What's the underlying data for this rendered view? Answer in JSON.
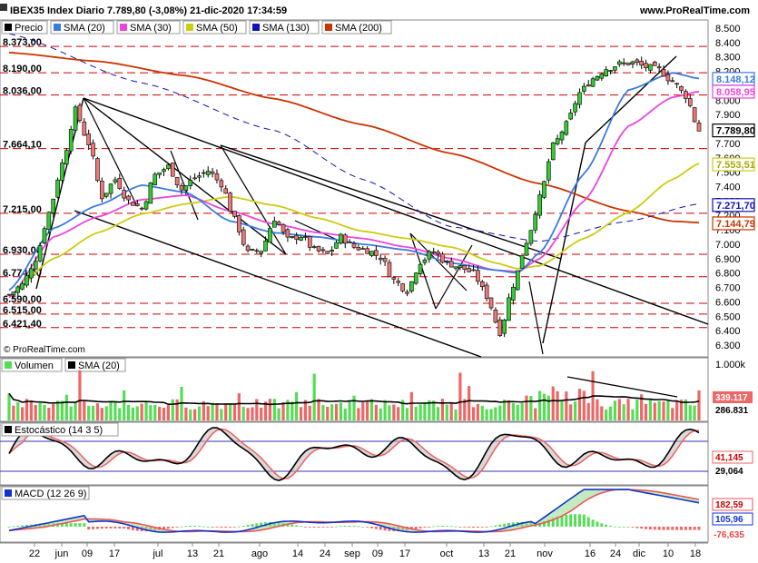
{
  "header": {
    "title": "IBEX35 Index Diario 7.789,80 (-3,08%) 21-dic-2020 17:34:59",
    "website": "www.ProRealTime.com",
    "watermark": "© ProRealTime.com"
  },
  "colors": {
    "price": "#000000",
    "sma20": "#3a7be0",
    "sma30": "#ee44dd",
    "sma50": "#cccc11",
    "sma130": "#1111bb",
    "sma200": "#cc3300",
    "up": "#33cc33",
    "down": "#ee7777",
    "level_line": "#cc0000",
    "volume_up": "#55dd55",
    "volume_down": "#ee6666"
  },
  "chart_data": [
    {
      "type": "line",
      "panel": "price",
      "legend": [
        "Precio",
        "SMA (20)",
        "SMA (30)",
        "SMA (50)",
        "SMA (130)",
        "SMA (200)"
      ],
      "ylim": [
        6300,
        8500
      ],
      "y_ticks": [
        "8.500",
        "8.400",
        "8.300",
        "8.200",
        "8.100",
        "8.000",
        "7.900",
        "7.800",
        "7.700",
        "7.600",
        "7.500",
        "7.400",
        "7.300",
        "7.200",
        "7.100",
        "7.000",
        "6.900",
        "6.800",
        "6.700",
        "6.600",
        "6.500",
        "6.400",
        "6.300"
      ],
      "x_ticks": [
        "22",
        "jun",
        "09",
        "17",
        "jul",
        "13",
        "21",
        "ago",
        "14",
        "24",
        "sep",
        "09",
        "17",
        "oct",
        "13",
        "21",
        "nov",
        "16",
        "24",
        "dic",
        "10",
        "18"
      ],
      "level_labels": [
        {
          "label": "8.373,00",
          "value": 8373
        },
        {
          "label": "8.190,00",
          "value": 8190
        },
        {
          "label": "8.036,00",
          "value": 8036
        },
        {
          "label": "7.664,10",
          "value": 7664
        },
        {
          "label": "7.215,00",
          "value": 7215
        },
        {
          "label": "6.930,00",
          "value": 6930
        },
        {
          "label": "6.774,00",
          "value": 6774
        },
        {
          "label": "6.590,00",
          "value": 6590
        },
        {
          "label": "6.515,00",
          "value": 6515
        },
        {
          "label": "6.421,40",
          "value": 6421
        }
      ],
      "value_badges": [
        {
          "label": "8.148,12",
          "value": 8148,
          "series": "sma20"
        },
        {
          "label": "8.058,95",
          "value": 8059,
          "series": "sma30"
        },
        {
          "label": "7.789,80",
          "value": 7790,
          "series": "price"
        },
        {
          "label": "7.553,51",
          "value": 7554,
          "series": "sma50"
        },
        {
          "label": "7.271,70",
          "value": 7272,
          "series": "sma130"
        },
        {
          "label": "7.144,79",
          "value": 7145,
          "series": "sma200"
        }
      ],
      "series": [
        {
          "name": "SMA (200)",
          "x": [
            0,
            20,
            40,
            60,
            80,
            100,
            120,
            140,
            150,
            156
          ],
          "values": [
            8330,
            8270,
            8170,
            8010,
            7830,
            7630,
            7420,
            7230,
            7160,
            7150
          ]
        },
        {
          "name": "SMA (130)",
          "x": [
            0,
            30,
            60,
            80,
            100,
            120,
            140,
            156
          ],
          "values": [
            8460,
            8120,
            7790,
            7450,
            7120,
            7020,
            7160,
            7280
          ]
        },
        {
          "name": "SMA (50)",
          "x": [
            0,
            10,
            20,
            30,
            40,
            50,
            60,
            70,
            80,
            90,
            100,
            110,
            115,
            120,
            130,
            140,
            150,
            156
          ],
          "values": [
            6640,
            6900,
            7080,
            7210,
            7280,
            7330,
            7270,
            7180,
            7090,
            7040,
            6980,
            6870,
            6830,
            6850,
            7040,
            7220,
            7450,
            7560
          ]
        },
        {
          "name": "SMA (30)",
          "x": [
            0,
            10,
            20,
            30,
            40,
            50,
            60,
            70,
            80,
            90,
            100,
            110,
            115,
            120,
            130,
            140,
            150,
            156
          ],
          "values": [
            6630,
            7050,
            7190,
            7310,
            7340,
            7230,
            7140,
            7080,
            7040,
            6980,
            6900,
            6820,
            6810,
            6900,
            7300,
            7820,
            8020,
            8060
          ]
        },
        {
          "name": "SMA (20)",
          "x": [
            0,
            10,
            20,
            30,
            40,
            50,
            60,
            70,
            80,
            90,
            100,
            110,
            115,
            120,
            130,
            140,
            150,
            156
          ],
          "values": [
            6680,
            7110,
            7270,
            7410,
            7360,
            7160,
            7080,
            7050,
            7000,
            6960,
            6870,
            6820,
            6800,
            6940,
            7490,
            8070,
            8190,
            8150
          ]
        },
        {
          "name": "Precio",
          "x": [
            0,
            3,
            6,
            9,
            12,
            15,
            18,
            21,
            24,
            27,
            30,
            33,
            36,
            39,
            42,
            45,
            48,
            51,
            54,
            57,
            60,
            63,
            66,
            69,
            72,
            75,
            78,
            81,
            84,
            87,
            90,
            93,
            96,
            99,
            102,
            105,
            108,
            111,
            114,
            117,
            120,
            123,
            126,
            129,
            132,
            135,
            138,
            141,
            144,
            147,
            150,
            153,
            156
          ],
          "values": [
            6650,
            6720,
            6900,
            7220,
            7560,
            7930,
            7700,
            7330,
            7450,
            7300,
            7250,
            7480,
            7540,
            7380,
            7460,
            7510,
            7420,
            7170,
            6940,
            6960,
            7180,
            7030,
            7060,
            6960,
            6930,
            7050,
            6980,
            6960,
            6910,
            6750,
            6680,
            6880,
            6950,
            6870,
            6840,
            6800,
            6640,
            6390,
            6720,
            7020,
            7320,
            7680,
            7830,
            8050,
            8150,
            8220,
            8250,
            8260,
            8230,
            8210,
            8130,
            8030,
            7790
          ]
        }
      ]
    },
    {
      "type": "bar",
      "panel": "volume",
      "legend": [
        "Volumen",
        "SMA (20)"
      ],
      "y_ticks": [
        "1.000k"
      ],
      "value_badges": [
        {
          "label": "339.117",
          "value": 339117
        },
        {
          "label": "286.831",
          "value": 286831
        }
      ],
      "ylim": [
        0,
        1000000
      ]
    },
    {
      "type": "line",
      "panel": "stochastic",
      "legend": [
        "Estocástico (14 3 5)"
      ],
      "ylim": [
        0,
        100
      ],
      "value_badges": [
        {
          "label": "41,145",
          "value": 41.145
        },
        {
          "label": "29,064",
          "value": 29.064
        }
      ]
    },
    {
      "type": "line",
      "panel": "macd",
      "legend": [
        "MACD (12 26 9)"
      ],
      "value_badges": [
        {
          "label": "182,59",
          "value": 182.59
        },
        {
          "label": "105,96",
          "value": 105.96
        },
        {
          "label": "-76,635",
          "value": -76.635
        }
      ]
    }
  ]
}
